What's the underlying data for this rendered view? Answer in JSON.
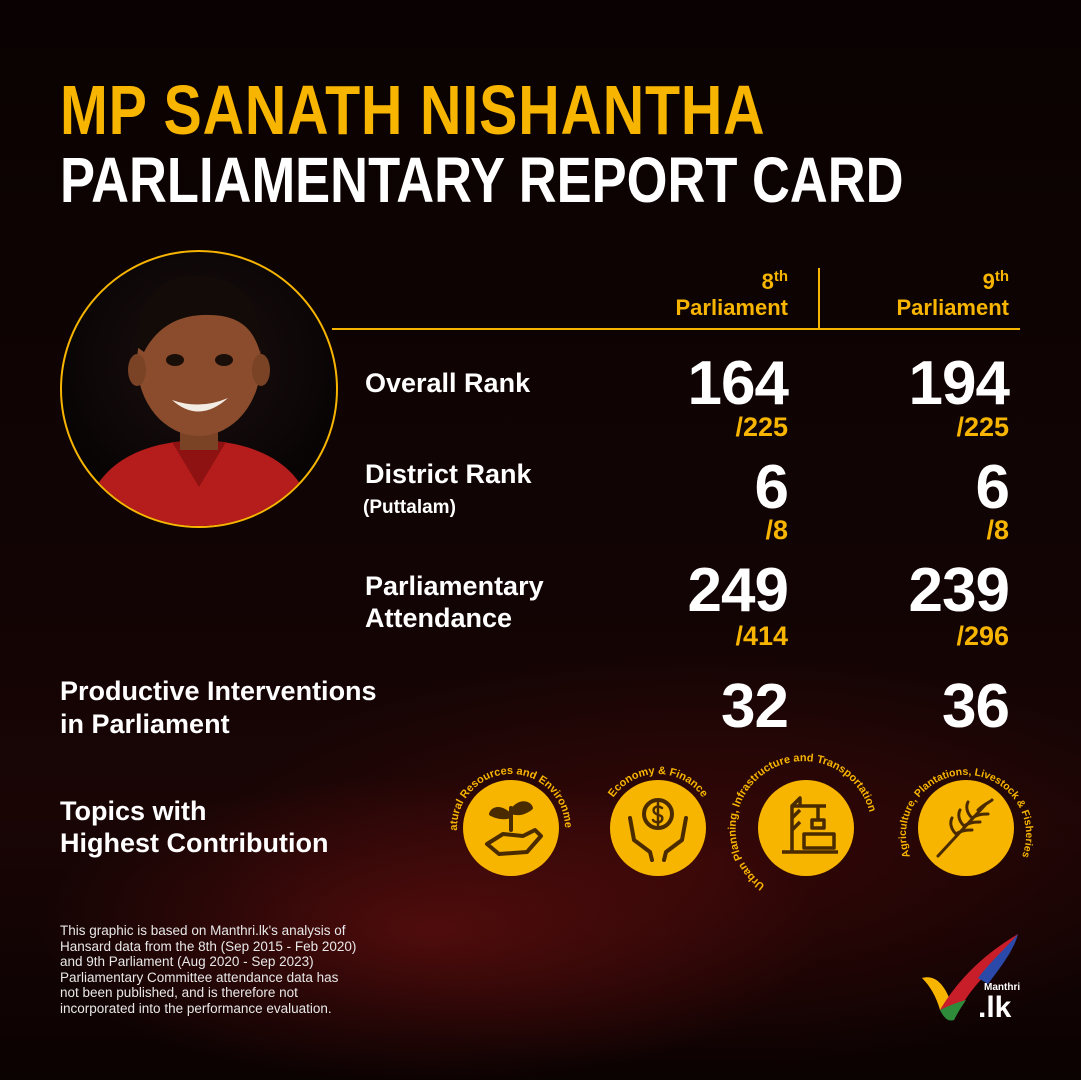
{
  "title": {
    "line1": "MP SANATH NISHANTHA",
    "line2": "PARLIAMENTARY REPORT CARD"
  },
  "columns": [
    {
      "num": "8",
      "sup": "th",
      "label": "Parliament"
    },
    {
      "num": "9",
      "sup": "th",
      "label": "Parliament"
    }
  ],
  "rows": {
    "overall": {
      "label": "Overall Rank",
      "p8": "164",
      "p8_den": "/225",
      "p9": "194",
      "p9_den": "/225"
    },
    "district": {
      "label": "District Rank",
      "sublabel": "(Puttalam)",
      "p8": "6",
      "p8_den": "/8",
      "p9": "6",
      "p9_den": "/8"
    },
    "attendance": {
      "label_line1": "Parliamentary",
      "label_line2": "Attendance",
      "p8": "249",
      "p8_den": "/414",
      "p9": "239",
      "p9_den": "/296"
    },
    "interventions": {
      "label_line1": "Productive Interventions",
      "label_line2": "in Parliament",
      "p8": "32",
      "p9": "36"
    }
  },
  "topics": {
    "label_line1": "Topics with",
    "label_line2": "Highest Contribution",
    "items": [
      {
        "name": "Natural Resources and Environment",
        "icon": "plant-in-hand-icon"
      },
      {
        "name": "Economy & Finance",
        "icon": "coin-in-hands-icon"
      },
      {
        "name": "Urban Planning, Infrastructure and Transportation",
        "icon": "crane-icon"
      },
      {
        "name": "Agriculture, Plantations, Livestock & Fisheries",
        "icon": "wheat-icon"
      }
    ]
  },
  "footnote": [
    "This graphic is based on Manthri.lk's analysis of",
    "Hansard data from the 8th (Sep 2015 - Feb 2020)",
    "and 9th Parliament (Aug 2020 -  Sep 2023)",
    "Parliamentary Committee attendance data has",
    "not been published, and is therefore not",
    "incorporated into the performance evaluation."
  ],
  "logo": {
    "small": "Manthri",
    "big": ".lk"
  },
  "colors": {
    "accent": "#f7b500",
    "background": "#0b0303",
    "text": "#ffffff"
  }
}
